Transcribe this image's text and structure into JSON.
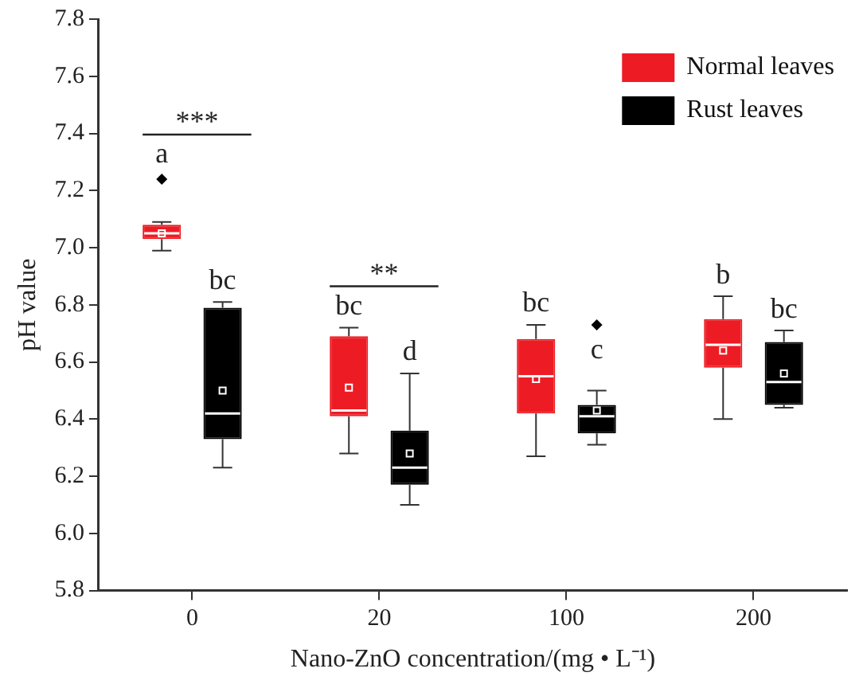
{
  "chart_data": {
    "type": "box",
    "xlabel": "Nano-ZnO concentration/(mg • L⁻¹)",
    "ylabel": "pH value",
    "categories": [
      "0",
      "20",
      "100",
      "200"
    ],
    "ylim": [
      5.8,
      7.8
    ],
    "yticks": [
      5.8,
      {
        "value": 6,
        "label": "6.0"
      },
      6.2,
      6.4,
      6.6,
      6.8,
      {
        "value": 7,
        "label": "7.0"
      },
      7.2,
      7.4,
      7.6,
      7.8
    ],
    "grid": false,
    "legend": "top right",
    "series": [
      {
        "name": "Normal leaves",
        "color": "#ed1c24",
        "boxes": [
          {
            "low": 6.99,
            "q1": 7.03,
            "median": 7.05,
            "q3": 7.08,
            "high": 7.09,
            "mean": 7.05,
            "outliers": [
              7.24
            ]
          },
          {
            "low": 6.28,
            "q1": 6.41,
            "median": 6.43,
            "q3": 6.69,
            "high": 6.72,
            "mean": 6.51
          },
          {
            "low": 6.27,
            "q1": 6.42,
            "median": 6.55,
            "q3": 6.68,
            "high": 6.73,
            "mean": 6.54
          },
          {
            "low": 6.4,
            "q1": 6.58,
            "median": 6.66,
            "q3": 6.75,
            "high": 6.83,
            "mean": 6.64
          }
        ]
      },
      {
        "name": "Rust leaves",
        "color": "#000000",
        "boxes": [
          {
            "low": 6.23,
            "q1": 6.33,
            "median": 6.42,
            "q3": 6.79,
            "high": 6.81,
            "mean": 6.5
          },
          {
            "low": 6.1,
            "q1": 6.17,
            "median": 6.23,
            "q3": 6.36,
            "high": 6.56,
            "mean": 6.28
          },
          {
            "low": 6.31,
            "q1": 6.35,
            "median": 6.41,
            "q3": 6.45,
            "high": 6.5,
            "mean": 6.43,
            "outliers": [
              6.73
            ]
          },
          {
            "low": 6.44,
            "q1": 6.45,
            "median": 6.53,
            "q3": 6.67,
            "high": 6.71,
            "mean": 6.56
          }
        ]
      }
    ],
    "annotations": [
      "a",
      "bc",
      "***",
      "bc",
      "d",
      "**",
      "bc",
      "c",
      "b",
      "bc"
    ]
  }
}
